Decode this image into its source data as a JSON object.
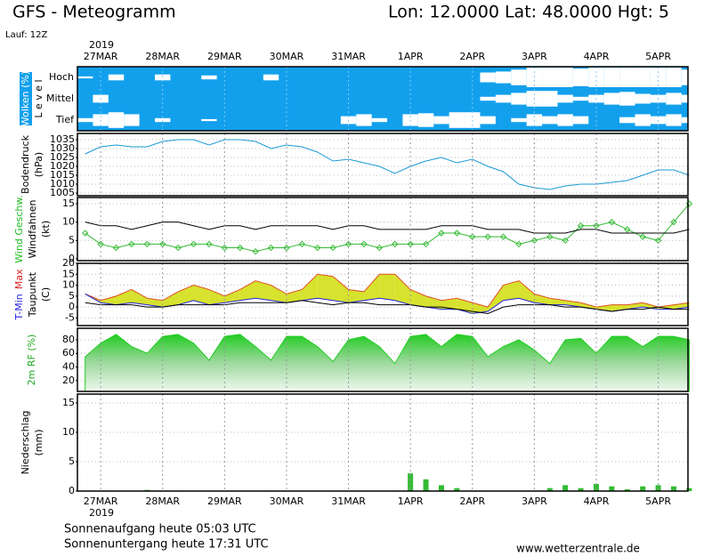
{
  "chart_data": {
    "type": "meteogram",
    "title": "GFS - Meteogramm",
    "location": "Lon: 12.0000 Lat: 48.0000 Hgt: 5",
    "run": "Lauf: 12Z",
    "year": "2019",
    "sunrise": "Sonnenaufgang heute 05:03 UTC",
    "sunset": "Sonnenuntergang heute 17:31 UTC",
    "source": "www.wetterzentrale.de",
    "xlim": [
      -0.375,
      9.48
    ],
    "xticks": [
      {
        "value": 0,
        "label": "27MAR"
      },
      {
        "value": 1,
        "label": "28MAR"
      },
      {
        "value": 2,
        "label": "29MAR"
      },
      {
        "value": 3,
        "label": "30MAR"
      },
      {
        "value": 4,
        "label": "31MAR"
      },
      {
        "value": 5,
        "label": "1APR"
      },
      {
        "value": 6,
        "label": "2APR"
      },
      {
        "value": 7,
        "label": "3APR"
      },
      {
        "value": 8,
        "label": "4APR"
      },
      {
        "value": 9,
        "label": "5APR"
      }
    ],
    "x": [
      -0.25,
      0,
      0.25,
      0.5,
      0.75,
      1,
      1.25,
      1.5,
      1.75,
      2,
      2.25,
      2.5,
      2.75,
      3,
      3.25,
      3.5,
      3.75,
      4,
      4.25,
      4.5,
      4.75,
      5,
      5.25,
      5.5,
      5.75,
      6,
      6.25,
      6.5,
      6.75,
      7,
      7.25,
      7.5,
      7.75,
      8,
      8.25,
      8.5,
      8.75,
      9,
      9.25,
      9.5
    ],
    "panels": [
      {
        "type": "clouds",
        "background": "#12a0ec",
        "labels": [
          {
            "parts": [
              {
                "text": "Wolken (%)",
                "color": "#ffffff"
              }
            ]
          },
          {
            "parts": [
              {
                "text": "L e v e l",
                "color": "#000000"
              }
            ]
          }
        ],
        "series": [
          {
            "name": "Hoch",
            "color": "#ffffff",
            "values": [
              10,
              0,
              30,
              0,
              0,
              30,
              0,
              0,
              20,
              0,
              0,
              0,
              30,
              0,
              0,
              0,
              0,
              0,
              0,
              0,
              0,
              0,
              0,
              0,
              0,
              0,
              50,
              60,
              80,
              100,
              100,
              100,
              90,
              100,
              100,
              100,
              100,
              100,
              100,
              80
            ]
          },
          {
            "name": "Mittel",
            "color": "#ffffff",
            "values": [
              0,
              40,
              0,
              0,
              0,
              0,
              0,
              0,
              0,
              0,
              0,
              0,
              0,
              0,
              0,
              0,
              0,
              0,
              0,
              0,
              0,
              0,
              0,
              0,
              0,
              0,
              20,
              40,
              60,
              80,
              80,
              40,
              20,
              40,
              60,
              70,
              50,
              40,
              60,
              40
            ]
          },
          {
            "name": "Tief",
            "color": "#ffffff",
            "values": [
              20,
              60,
              80,
              60,
              0,
              20,
              0,
              0,
              10,
              0,
              0,
              0,
              0,
              0,
              0,
              0,
              0,
              40,
              60,
              20,
              0,
              60,
              70,
              40,
              80,
              80,
              40,
              0,
              20,
              60,
              40,
              60,
              40,
              0,
              0,
              30,
              60,
              40,
              60,
              30
            ]
          }
        ]
      },
      {
        "type": "line",
        "ylim": [
          1003.5,
          1038.5
        ],
        "yticks": [
          1005,
          1010,
          1015,
          1020,
          1025,
          1030,
          1035
        ],
        "labels": [
          {
            "parts": [
              {
                "text": "Bodendruck",
                "color": "#000000"
              }
            ]
          },
          {
            "parts": [
              {
                "text": "(hPa)",
                "color": "#000000"
              }
            ]
          }
        ],
        "series": [
          {
            "color": "#1b9ad6",
            "values": [
              1027,
              1031,
              1032,
              1031,
              1031,
              1034,
              1035,
              1035,
              1032,
              1035,
              1035,
              1034,
              1030,
              1032,
              1031,
              1028,
              1023,
              1024,
              1022,
              1020,
              1016,
              1020,
              1023,
              1025,
              1022,
              1024,
              1020,
              1017,
              1010,
              1008,
              1007,
              1009,
              1010,
              1010,
              1011,
              1012,
              1015,
              1018,
              1018,
              1015
            ]
          }
        ]
      },
      {
        "type": "line",
        "ylim": [
          -0.5,
          16.7
        ],
        "yticks": [
          0,
          5,
          10,
          15
        ],
        "labels": [
          {
            "parts": [
              {
                "text": "Wind Geschw.",
                "color": "#22bb22"
              }
            ]
          },
          {
            "parts": [
              {
                "text": "Windfahnen",
                "color": "#000000"
              }
            ]
          },
          {
            "parts": [
              {
                "text": "(kt)",
                "color": "#000000"
              }
            ]
          }
        ],
        "series": [
          {
            "color": "#33bb33",
            "markers": true,
            "values": [
              7,
              4,
              3,
              4,
              4,
              4,
              3,
              4,
              4,
              3,
              3,
              2,
              3,
              3,
              4,
              3,
              3,
              4,
              4,
              3,
              4,
              4,
              4,
              7,
              7,
              6,
              6,
              6,
              4,
              5,
              6,
              5,
              9,
              9,
              10,
              8,
              6,
              5,
              10,
              15
            ]
          },
          {
            "color": "#000000",
            "values": [
              10,
              9,
              9,
              8,
              9,
              10,
              10,
              9,
              8,
              9,
              9,
              8,
              9,
              9,
              9,
              9,
              8,
              9,
              9,
              8,
              8,
              8,
              8,
              9,
              9,
              9,
              8,
              8,
              8,
              7,
              7,
              7,
              8,
              8,
              7,
              7,
              7,
              7,
              7,
              8
            ]
          }
        ]
      },
      {
        "type": "band",
        "ylim": [
          -8.5,
          20
        ],
        "yticks": [
          -5,
          0,
          5,
          10,
          15,
          20
        ],
        "fill": "#d6e22e",
        "labels": [
          {
            "parts": [
              {
                "text": "T-Min",
                "color": "#2222dd"
              },
              {
                "text": "Max",
                "color": "#dd2222"
              }
            ]
          },
          {
            "parts": [
              {
                "text": "Taupunkt",
                "color": "#000000"
              }
            ]
          },
          {
            "parts": [
              {
                "text": "(C)",
                "color": "#000000"
              }
            ]
          }
        ],
        "series": [
          {
            "color": "#e05020",
            "values": [
              6,
              3,
              5,
              8,
              4,
              3,
              7,
              10,
              8,
              5,
              8,
              12,
              10,
              6,
              8,
              15,
              14,
              8,
              7,
              15,
              15,
              8,
              5,
              3,
              4,
              2,
              0,
              10,
              12,
              6,
              4,
              3,
              2,
              0,
              1,
              1,
              2,
              0,
              1,
              2
            ]
          },
          {
            "color": "#2222dd",
            "values": [
              6,
              2,
              1,
              2,
              1,
              0,
              1,
              3,
              1,
              2,
              3,
              4,
              3,
              2,
              3,
              4,
              3,
              2,
              3,
              4,
              3,
              1,
              0,
              -1,
              -1,
              -3,
              -2,
              3,
              4,
              2,
              1,
              1,
              0,
              -1,
              -2,
              -1,
              0,
              -1,
              -1,
              0
            ]
          },
          {
            "color": "#000000",
            "values": [
              2,
              1,
              1,
              1,
              0,
              0,
              1,
              1,
              1,
              1,
              2,
              2,
              2,
              2,
              3,
              2,
              1,
              2,
              2,
              1,
              1,
              1,
              0,
              0,
              -1,
              -2,
              -3,
              0,
              1,
              1,
              1,
              0,
              0,
              -1,
              -2,
              -1,
              -1,
              0,
              -1,
              -1
            ]
          }
        ]
      },
      {
        "type": "area",
        "ylim": [
          4,
          97
        ],
        "yticks": [
          20,
          40,
          60,
          80
        ],
        "labels": [
          {
            "parts": [
              {
                "text": "2m RF (%)",
                "color": "#22aa22"
              }
            ]
          }
        ],
        "series": [
          {
            "color": "#22cc22",
            "values": [
              55,
              75,
              88,
              70,
              60,
              85,
              88,
              75,
              50,
              85,
              88,
              70,
              50,
              85,
              85,
              70,
              48,
              80,
              85,
              70,
              45,
              85,
              88,
              70,
              88,
              85,
              55,
              70,
              80,
              65,
              45,
              80,
              82,
              60,
              85,
              85,
              70,
              85,
              85,
              80
            ]
          }
        ]
      },
      {
        "type": "bar",
        "ylim": [
          0,
          16.5
        ],
        "yticks": [
          0,
          5,
          10,
          15
        ],
        "labels": [
          {
            "parts": [
              {
                "text": "Niederschlag",
                "color": "#000000"
              }
            ]
          },
          {
            "parts": [
              {
                "text": "(mm)",
                "color": "#000000"
              }
            ]
          }
        ],
        "series": [
          {
            "color": "#33bb33",
            "values": [
              0,
              0,
              0,
              0,
              0.2,
              0,
              0,
              0,
              0,
              0,
              0,
              0,
              0,
              0,
              0,
              0,
              0,
              0,
              0,
              0,
              0,
              3,
              2,
              1,
              0.5,
              0,
              0,
              0,
              0,
              0,
              0.5,
              1,
              0.5,
              1.2,
              0.8,
              0.3,
              0.8,
              1,
              0.8,
              0.5
            ]
          }
        ]
      }
    ]
  }
}
